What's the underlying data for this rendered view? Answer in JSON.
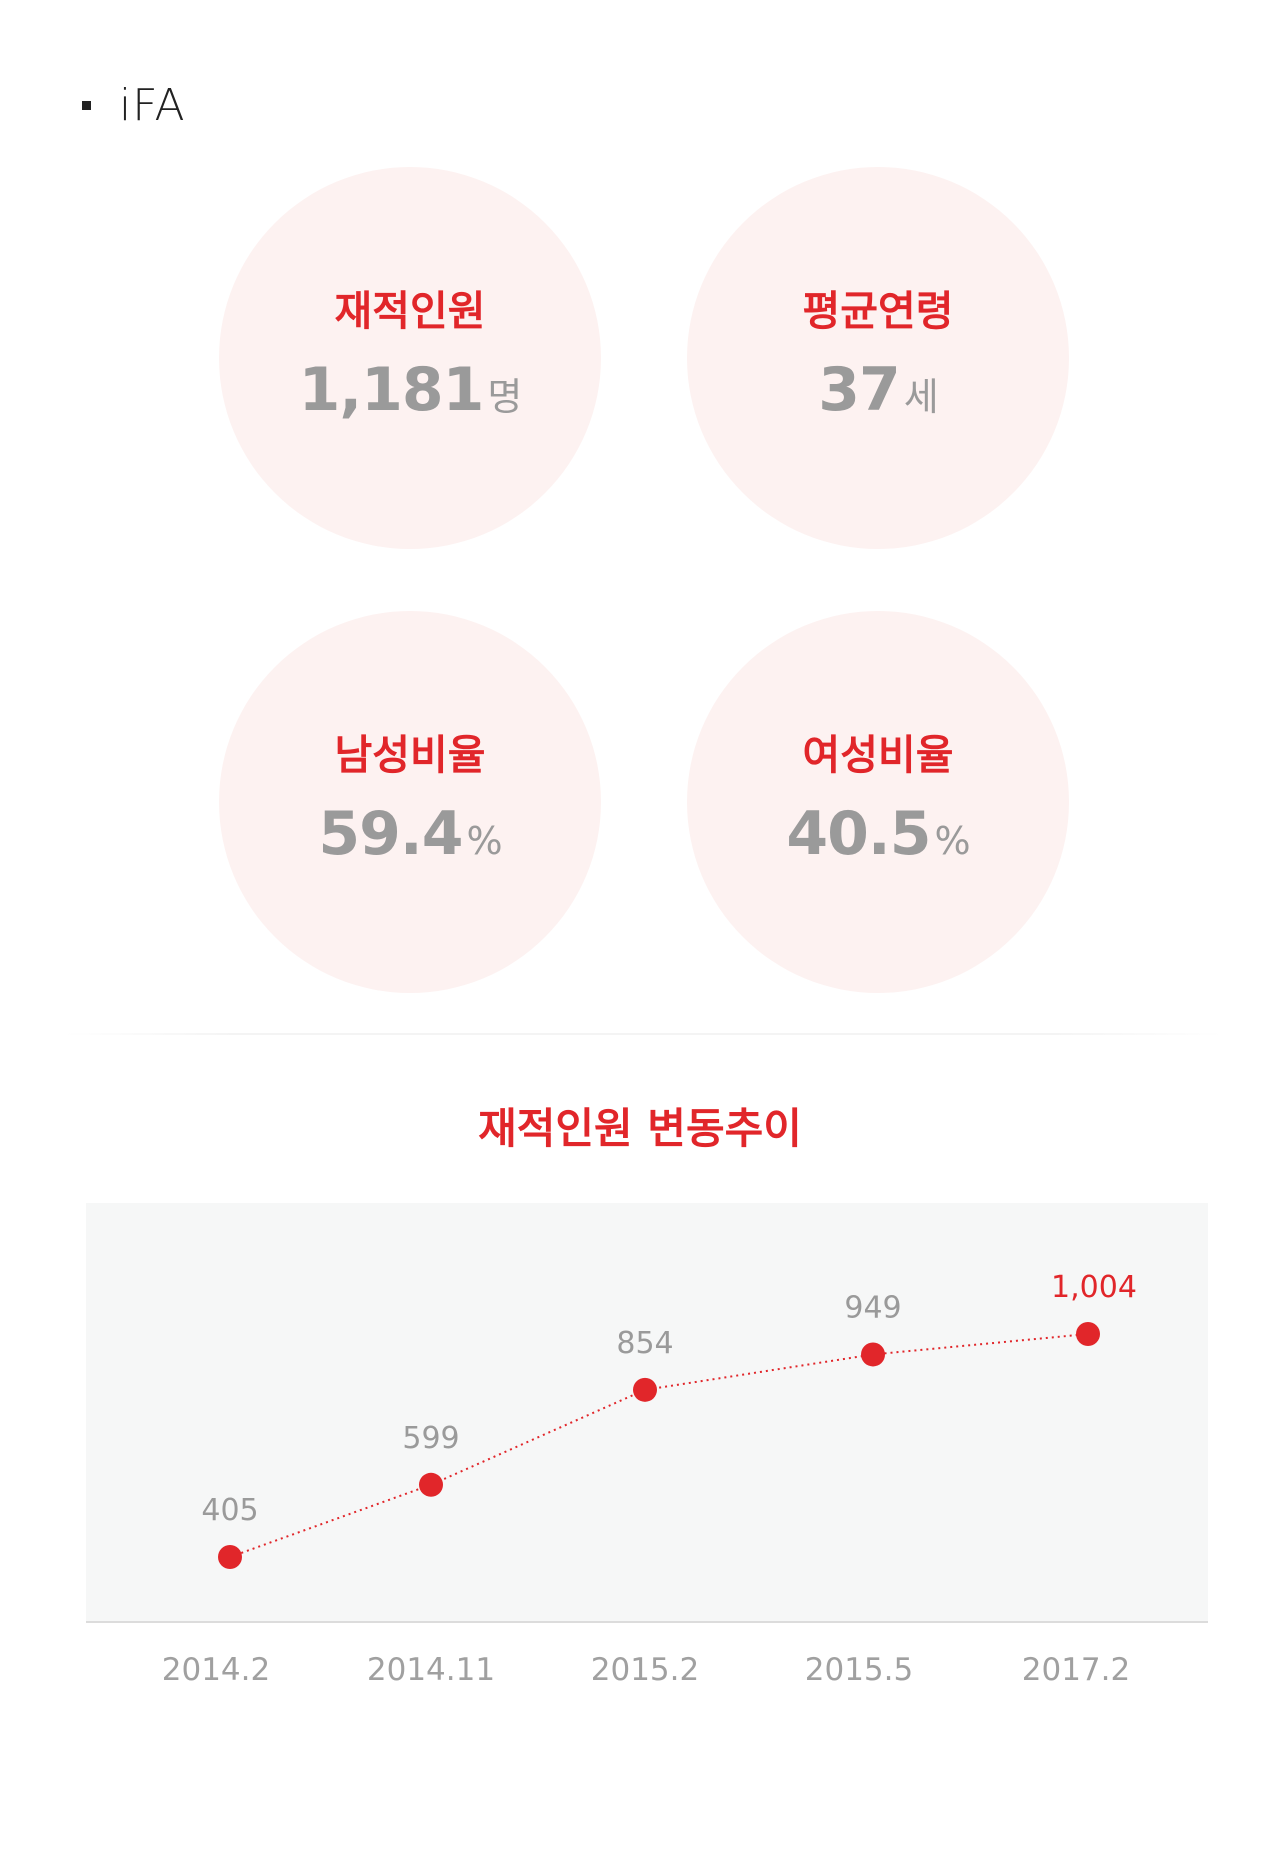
{
  "section": {
    "title": "iFA"
  },
  "stats": [
    {
      "label": "재적인원",
      "value": "1,181",
      "unit": "명"
    },
    {
      "label": "평균연령",
      "value": "37",
      "unit": "세"
    },
    {
      "label": "남성비율",
      "value": "59.4",
      "unit": "%"
    },
    {
      "label": "여성비율",
      "value": "40.5",
      "unit": "%"
    }
  ],
  "colors": {
    "accent": "#e1262a",
    "circle_bg": "#fdf2f1",
    "plot_bg": "#f6f7f7",
    "value_gray": "#9a9a9a"
  },
  "chart_data": {
    "type": "line",
    "title": "재적인원 변동추이",
    "categories": [
      "2014.2",
      "2014.11",
      "2015.2",
      "2015.5",
      "2017.2"
    ],
    "values": [
      405,
      599,
      854,
      949,
      1004
    ],
    "data_labels": [
      "405",
      "599",
      "854",
      "949",
      "1,004"
    ],
    "highlight_last": true,
    "line_style": "dotted",
    "ylim": [
      0,
      1200
    ],
    "grid": false,
    "legend": "none"
  }
}
